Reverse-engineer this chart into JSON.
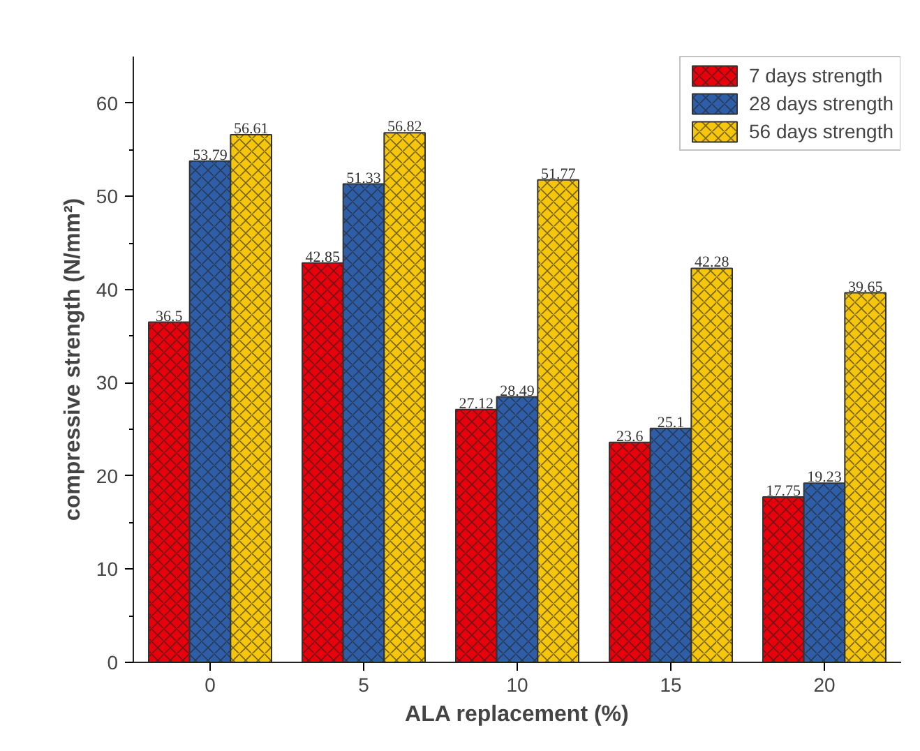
{
  "chart_data": {
    "type": "bar",
    "xlabel": "ALA replacement (%)",
    "ylabel": "compressive strength (N/mm²)",
    "categories": [
      "0",
      "5",
      "10",
      "15",
      "20"
    ],
    "series": [
      {
        "name": "7 days strength",
        "color": "#e8000b",
        "values": [
          36.5,
          42.85,
          27.12,
          23.6,
          17.75
        ]
      },
      {
        "name": "28 days strength",
        "color": "#2e5ea8",
        "values": [
          53.79,
          51.33,
          28.49,
          25.1,
          19.23
        ]
      },
      {
        "name": "56 days strength",
        "color": "#f5c60c",
        "values": [
          56.61,
          56.82,
          51.77,
          42.28,
          39.65
        ]
      }
    ],
    "ylim": [
      0,
      65
    ],
    "yticks": [
      0,
      10,
      20,
      30,
      40,
      50,
      60
    ],
    "data_labels": true,
    "legend": "top right",
    "grid": false
  }
}
